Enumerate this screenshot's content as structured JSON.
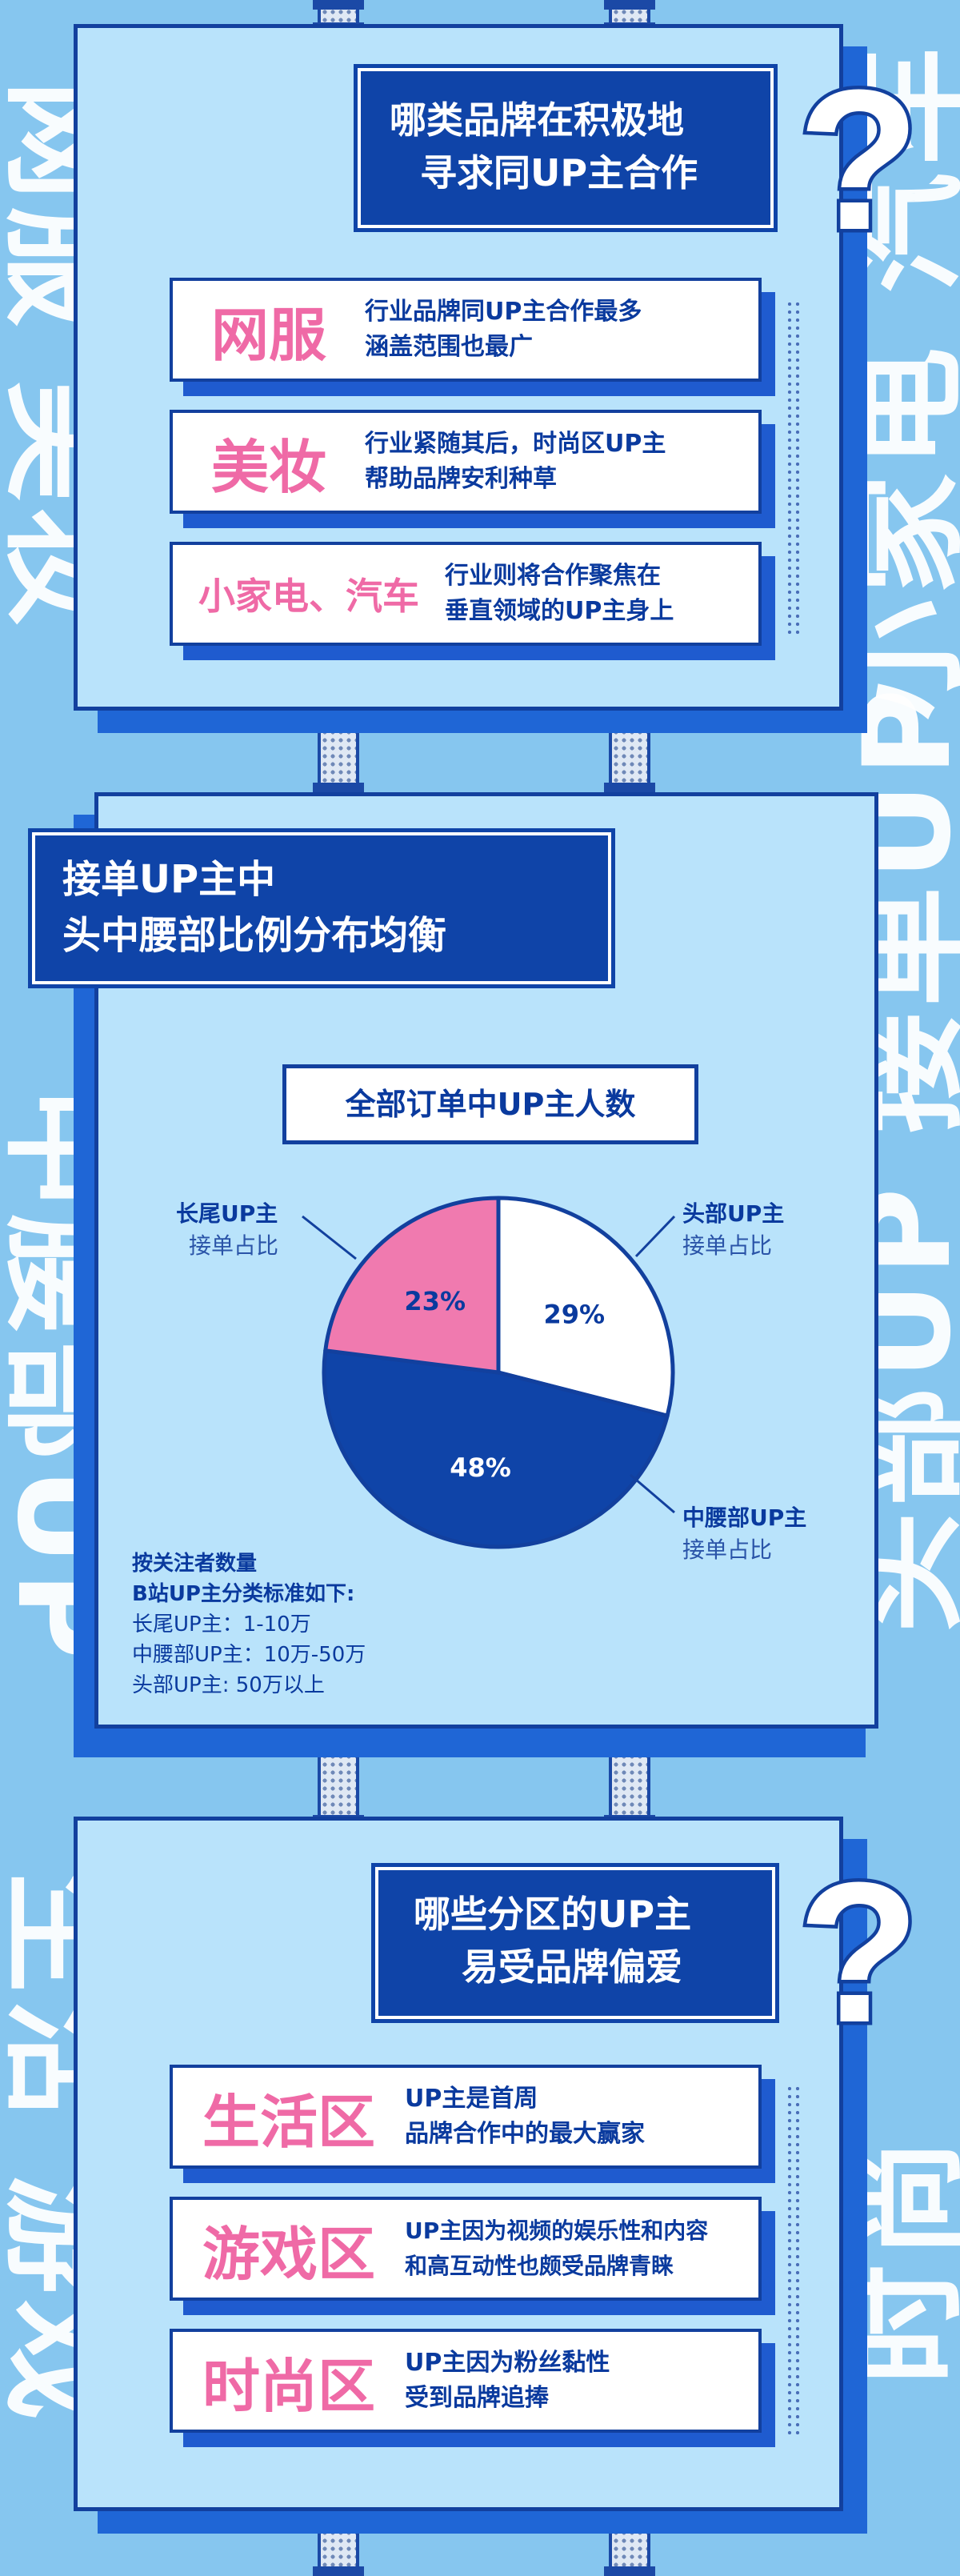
{
  "background_words": {
    "left_1": "网服 美妆",
    "right_1": "小家电 汽车",
    "right_2": "头部UP 接单UP",
    "left_2": "中腰部UP",
    "left_3": "生活 游戏",
    "right_3": "时尚"
  },
  "section1": {
    "title_line1": "哪类品牌在积极地",
    "title_line2": "寻求同UP主合作",
    "question_mark": "?",
    "items": [
      {
        "name": "网服",
        "desc": "行业品牌同UP主合作最多\n涵盖范围也最广"
      },
      {
        "name": "美妆",
        "desc": "行业紧随其后，时尚区UP主\n帮助品牌安利种草"
      },
      {
        "name": "小家电、汽车",
        "desc": "行业则将合作聚焦在\n垂直领域的UP主身上"
      }
    ]
  },
  "section2": {
    "title_line1": "接单UP主中",
    "title_line2": "头中腰部比例分布均衡",
    "note_line1": "按关注者数量",
    "note_line2": "B站UP主分类标准如下:",
    "note_line3": "长尾UP主：1-10万",
    "note_line4": "中腰部UP主：10万-50万",
    "note_line5": "头部UP主: 50万以上"
  },
  "chart_data": {
    "type": "pie",
    "title": "全部订单中UP主人数",
    "slices": [
      {
        "name": "头部UP主",
        "sublabel": "接单占比",
        "value": 29,
        "label": "29%",
        "color": "#ffffff"
      },
      {
        "name": "中腰部UP主",
        "sublabel": "接单占比",
        "value": 48,
        "label": "48%",
        "color": "#0f44a8"
      },
      {
        "name": "长尾UP主",
        "sublabel": "接单占比",
        "value": 23,
        "label": "23%",
        "color": "#f07aaf"
      }
    ]
  },
  "section3": {
    "title_line1": "哪些分区的UP主",
    "title_line2": "易受品牌偏爱",
    "question_mark": "?",
    "items": [
      {
        "name": "生活区",
        "desc": "UP主是首周\n品牌合作中的最大赢家"
      },
      {
        "name": "游戏区",
        "desc": "UP主因为视频的娱乐性和内容\n和高互动性也颇受品牌青睐"
      },
      {
        "name": "时尚区",
        "desc": "UP主因为粉丝黏性\n受到品牌追捧"
      }
    ]
  },
  "colors": {
    "background": "#86c6ef",
    "board": "#b9e3fb",
    "navy": "#0f44a8",
    "pink": "#f07aaf",
    "white": "#ffffff"
  }
}
